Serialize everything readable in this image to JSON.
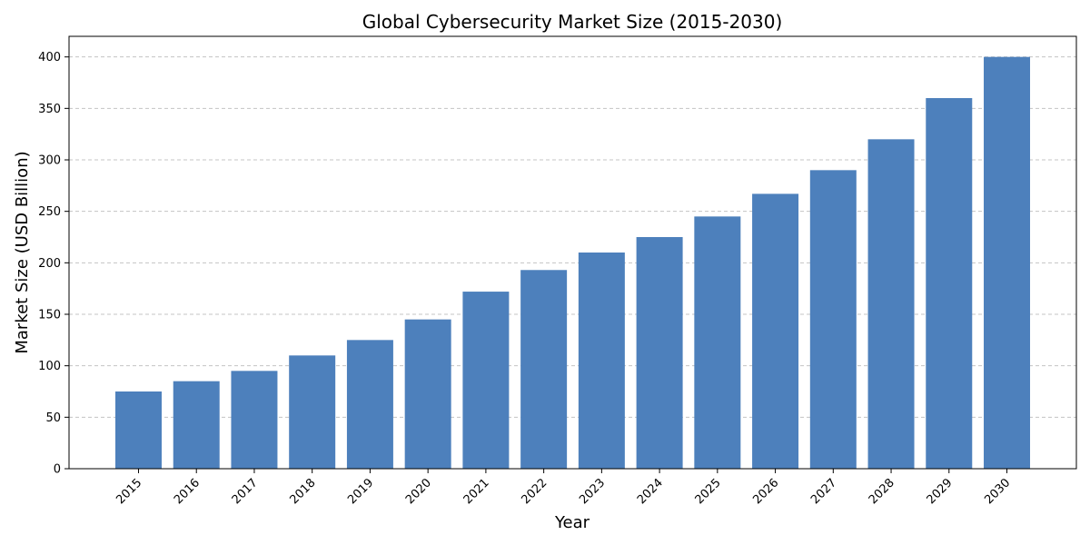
{
  "chart_data": {
    "type": "bar",
    "title": "Global Cybersecurity Market Size (2015-2030)",
    "xlabel": "Year",
    "ylabel": "Market Size (USD Billion)",
    "categories": [
      "2015",
      "2016",
      "2017",
      "2018",
      "2019",
      "2020",
      "2021",
      "2022",
      "2023",
      "2024",
      "2025",
      "2026",
      "2027",
      "2028",
      "2029",
      "2030"
    ],
    "values": [
      75,
      85,
      95,
      110,
      125,
      145,
      172,
      193,
      210,
      225,
      245,
      267,
      290,
      320,
      360,
      400
    ],
    "ylim": [
      0,
      420
    ],
    "yticks": [
      0,
      50,
      100,
      150,
      200,
      250,
      300,
      350,
      400
    ],
    "grid": "y-dashed",
    "bar_color": "#4d80bc",
    "x_tick_rotation": 45
  }
}
